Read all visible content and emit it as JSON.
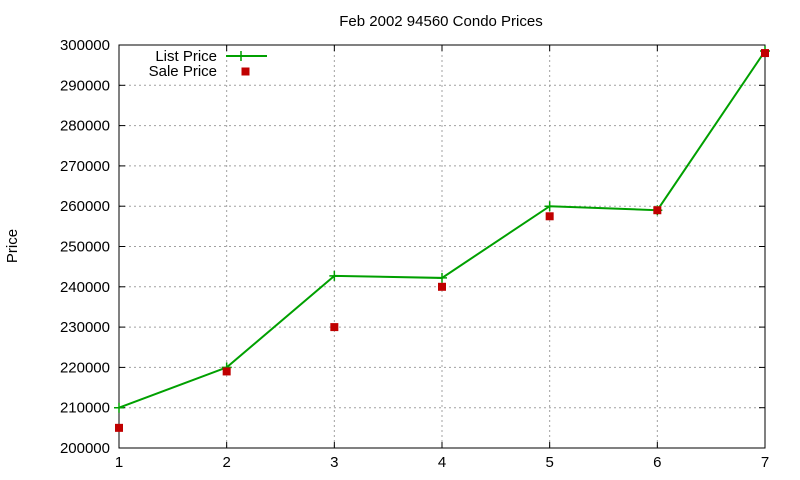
{
  "chart_data": {
    "type": "line",
    "title": "Feb 2002 94560 Condo Prices",
    "xlabel": "",
    "ylabel": "Price",
    "xlim": [
      1,
      7
    ],
    "ylim": [
      200000,
      300000
    ],
    "x": [
      1,
      2,
      3,
      4,
      5,
      6,
      7
    ],
    "x_ticks": [
      "1",
      "2",
      "3",
      "4",
      "5",
      "6",
      "7"
    ],
    "y_ticks": [
      "200000",
      "210000",
      "220000",
      "230000",
      "240000",
      "250000",
      "260000",
      "270000",
      "280000",
      "290000",
      "300000"
    ],
    "y_tick_values": [
      200000,
      210000,
      220000,
      230000,
      240000,
      250000,
      260000,
      270000,
      280000,
      290000,
      300000
    ],
    "grid": true,
    "legend_position": "top-left",
    "series": [
      {
        "name": "List Price",
        "style": "line-with-plus-markers",
        "color": "#00a000",
        "values": [
          210000,
          220000,
          242700,
          242200,
          260000,
          259000,
          298500
        ]
      },
      {
        "name": "Sale Price",
        "style": "square-markers",
        "color": "#c00000",
        "values": [
          205000,
          219000,
          230000,
          240000,
          257500,
          259000,
          298000
        ]
      }
    ]
  }
}
